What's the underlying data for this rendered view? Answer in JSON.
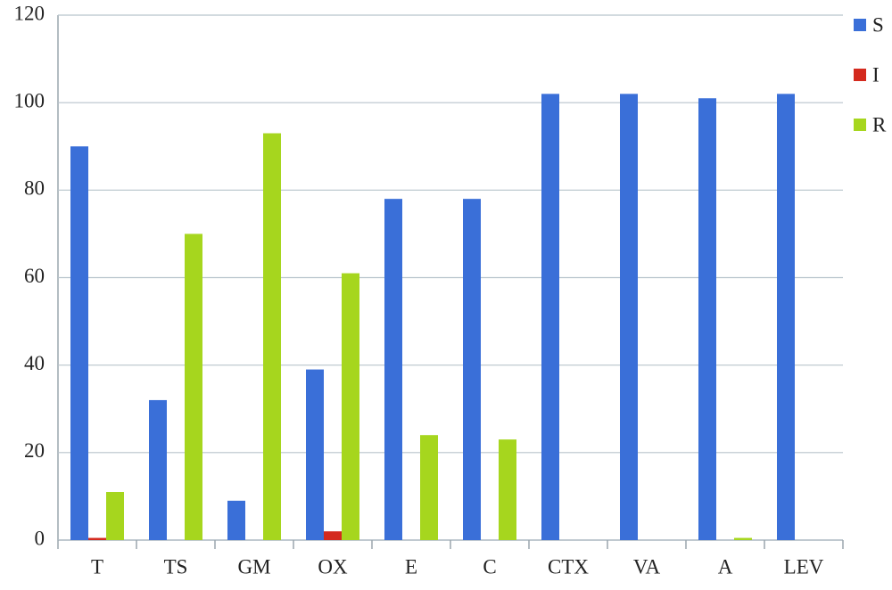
{
  "chart_data": {
    "type": "bar",
    "categories": [
      "T",
      "TS",
      "GM",
      "OX",
      "E",
      "C",
      "CTX",
      "VA",
      "A",
      "LEV"
    ],
    "series": [
      {
        "name": "S",
        "color": "#3a6fd8",
        "values": [
          90,
          32,
          9,
          39,
          78,
          78,
          102,
          102,
          101,
          102
        ]
      },
      {
        "name": "I",
        "color": "#d42a1e",
        "values": [
          0.5,
          0,
          0,
          2,
          0,
          0,
          0,
          0,
          0,
          0
        ]
      },
      {
        "name": "R",
        "color": "#a6d61e",
        "values": [
          11,
          70,
          93,
          61,
          24,
          23,
          0,
          0,
          0.5,
          0
        ]
      }
    ],
    "ylim": [
      0,
      120
    ],
    "yticks": [
      0,
      20,
      40,
      60,
      80,
      100,
      120
    ],
    "grid": true,
    "legend": "right"
  }
}
